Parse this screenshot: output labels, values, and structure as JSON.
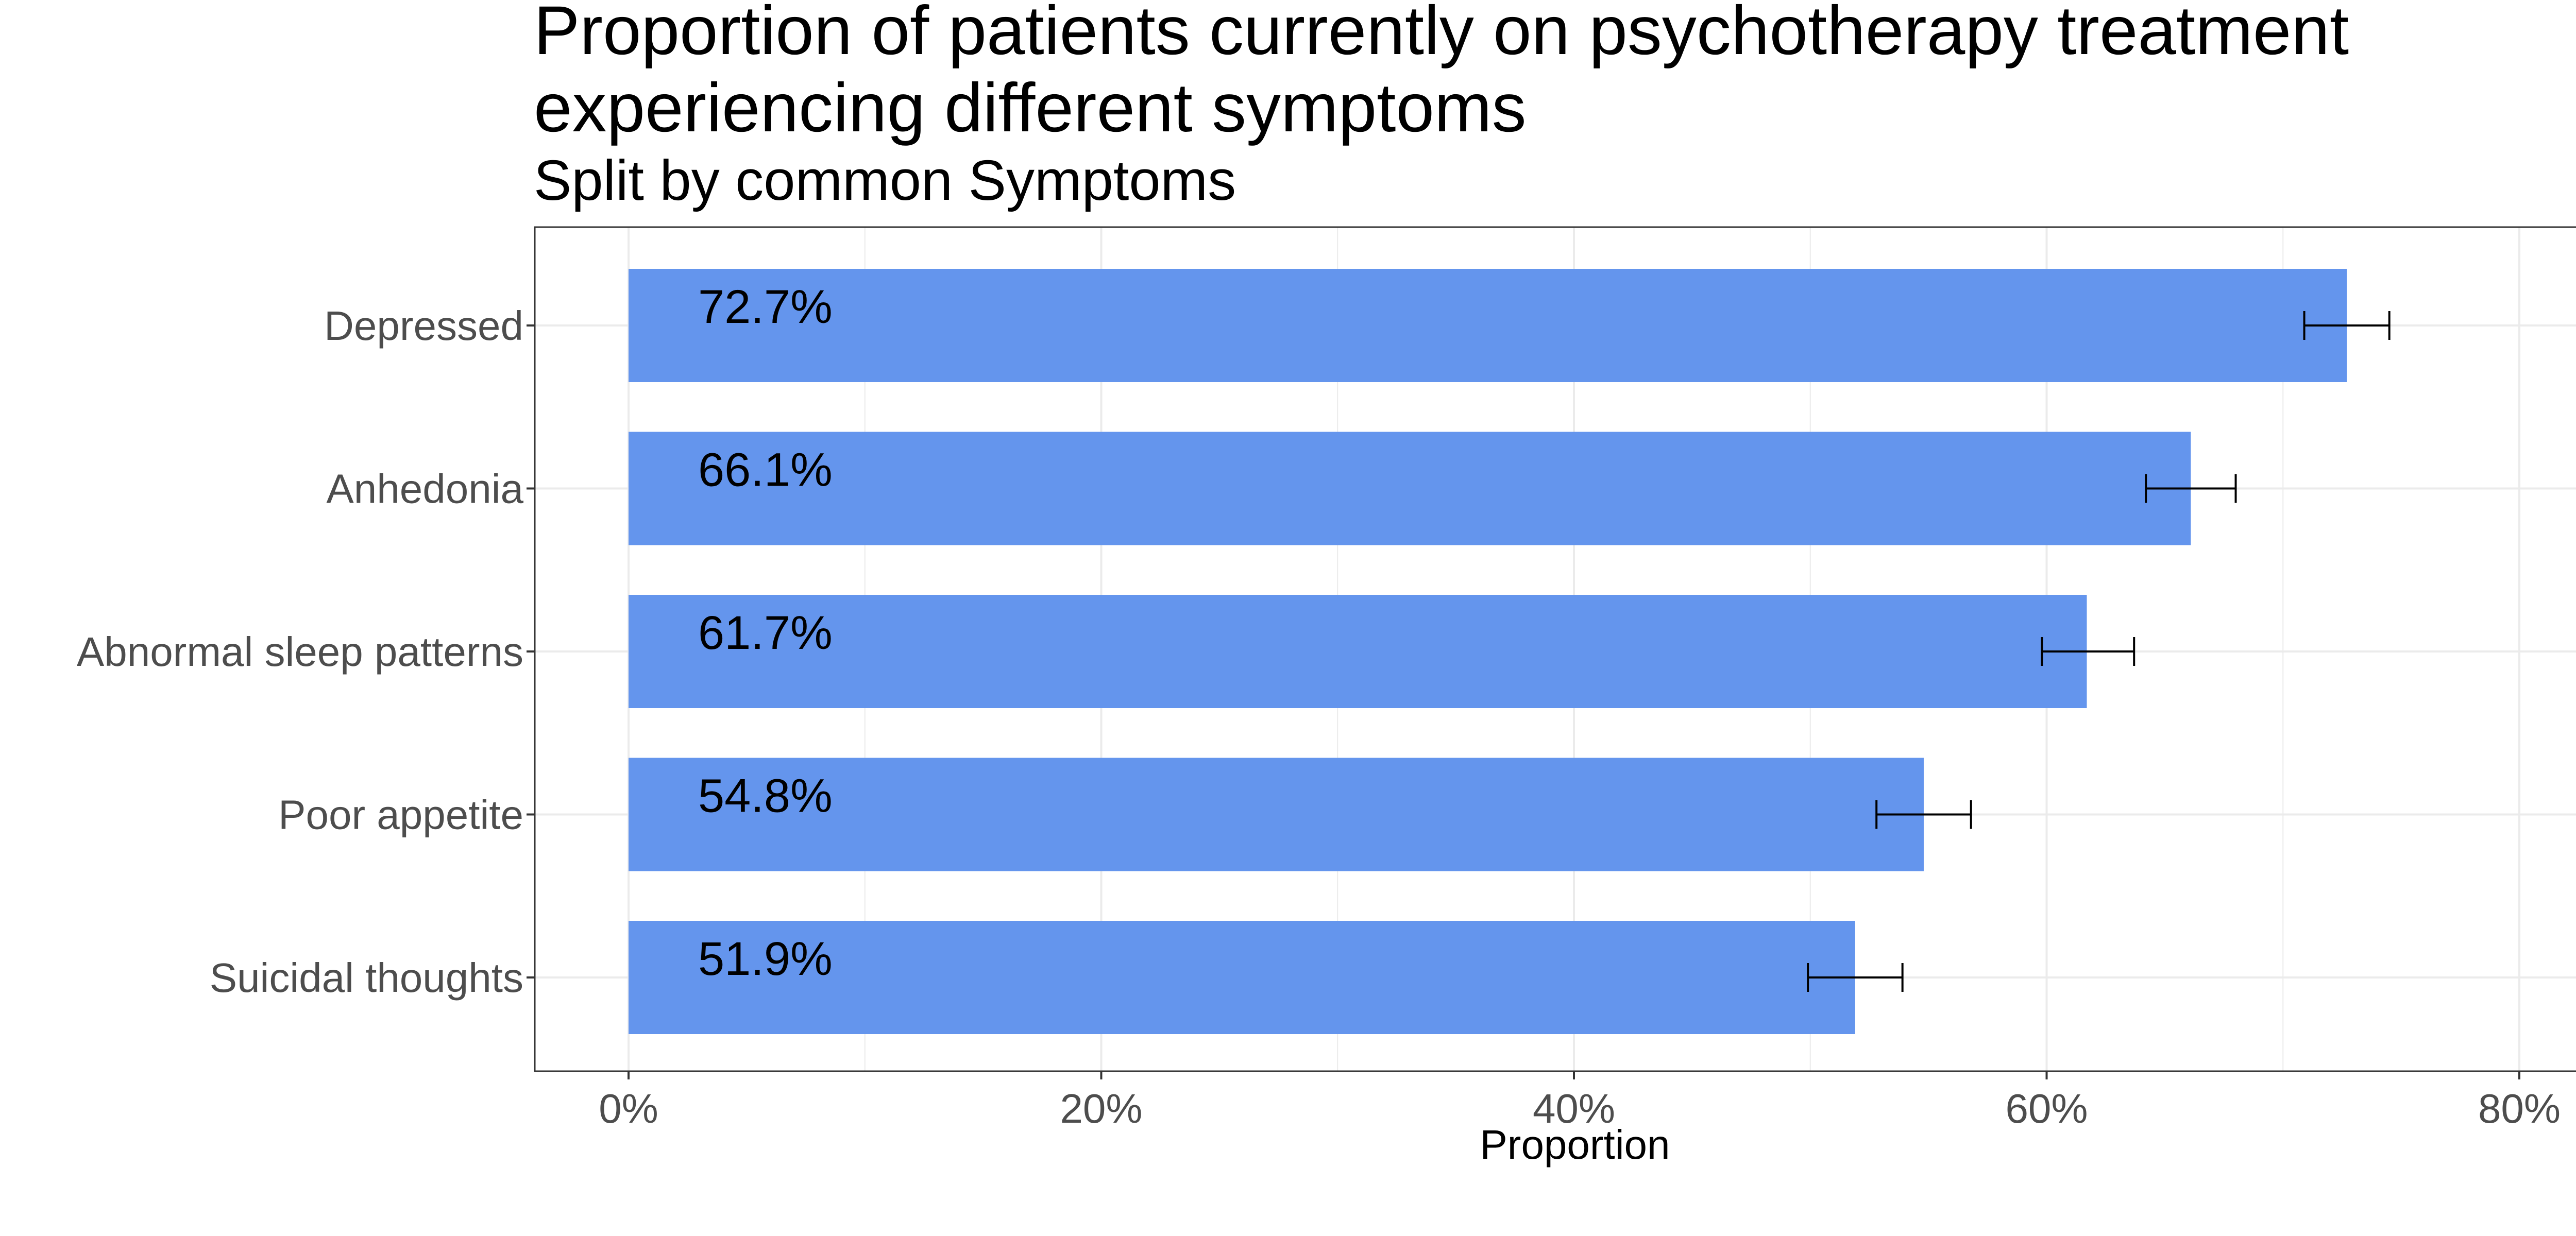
{
  "chart_data": {
    "type": "bar",
    "orientation": "horizontal",
    "title_lines": [
      "Proportion of patients currently on psychotherapy treatment",
      "experiencing different symptoms"
    ],
    "subtitle": "Split by common Symptoms",
    "xlabel": "Proportion",
    "ylabel": "",
    "xlim": [
      0,
      0.8
    ],
    "x_ticks": [
      0,
      0.2,
      0.4,
      0.6,
      0.8
    ],
    "x_tick_labels": [
      "0%",
      "20%",
      "40%",
      "60%",
      "80%"
    ],
    "grid": true,
    "legend": "none",
    "bar_color": "#6495ED",
    "categories": [
      "Depressed",
      "Anhedonia",
      "Abnormal sleep patterns",
      "Poor appetite",
      "Suicidal thoughts"
    ],
    "values": [
      0.727,
      0.661,
      0.617,
      0.548,
      0.519
    ],
    "error_low": [
      0.709,
      0.642,
      0.598,
      0.528,
      0.499
    ],
    "error_high": [
      0.745,
      0.68,
      0.637,
      0.568,
      0.539
    ],
    "data_labels": [
      "72.7%",
      "66.1%",
      "61.7%",
      "54.8%",
      "51.9%"
    ]
  }
}
